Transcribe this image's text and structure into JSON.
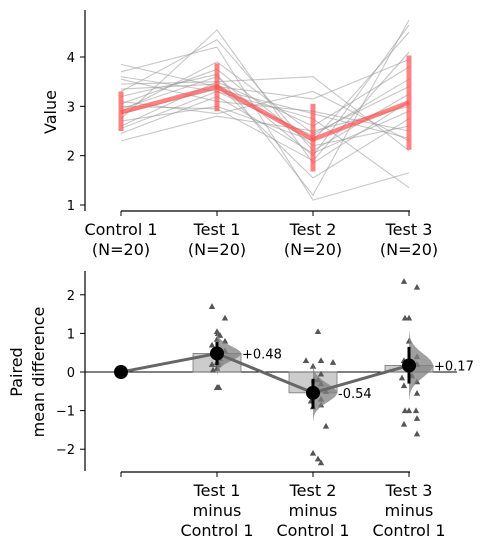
{
  "chart_data": [
    {
      "type": "line",
      "title": "",
      "ylabel": "Value",
      "xlabel": "",
      "ylim": [
        0.9,
        4.95
      ],
      "yticks": [
        1,
        2,
        3,
        4
      ],
      "categories": [
        "Control 1",
        "Test 1",
        "Test 2",
        "Test 3"
      ],
      "category_counts": [
        "(N=20)",
        "(N=20)",
        "(N=20)",
        "(N=20)"
      ],
      "paired_lines": [
        [
          2.45,
          3.2,
          2.05,
          2.9
        ],
        [
          2.6,
          3.5,
          2.6,
          3.8
        ],
        [
          2.7,
          3.0,
          2.3,
          4.5
        ],
        [
          2.75,
          4.55,
          1.85,
          3.1
        ],
        [
          2.85,
          3.35,
          2.85,
          2.35
        ],
        [
          2.9,
          3.9,
          2.45,
          3.4
        ],
        [
          3.0,
          2.95,
          1.9,
          4.1
        ],
        [
          3.05,
          3.75,
          2.2,
          2.6
        ],
        [
          3.2,
          3.65,
          1.2,
          4.75
        ],
        [
          3.3,
          4.35,
          2.1,
          3.25
        ],
        [
          3.45,
          3.5,
          3.6,
          2.1
        ],
        [
          3.55,
          3.1,
          2.9,
          2.5
        ],
        [
          3.7,
          4.2,
          1.1,
          1.65
        ],
        [
          3.85,
          3.4,
          3.15,
          3.95
        ],
        [
          2.3,
          2.8,
          2.5,
          3.0
        ],
        [
          2.55,
          3.3,
          2.75,
          1.35
        ],
        [
          2.95,
          3.6,
          2.0,
          4.65
        ],
        [
          3.1,
          2.85,
          3.3,
          2.3
        ],
        [
          3.35,
          3.45,
          1.55,
          2.75
        ],
        [
          3.6,
          3.3,
          2.4,
          3.55
        ]
      ],
      "summary_means": [
        2.88,
        3.4,
        2.33,
        3.08
      ],
      "summary_std_ranges": [
        [
          2.5,
          3.3
        ],
        [
          2.9,
          3.87
        ],
        [
          1.68,
          3.05
        ],
        [
          2.12,
          4.03
        ]
      ],
      "grid": false
    },
    {
      "type": "scatter",
      "title": "",
      "ylabel": "Paired mean difference",
      "ylabel_lines": [
        "Paired",
        "mean difference"
      ],
      "xlabel": "",
      "ylim": [
        -2.6,
        2.6
      ],
      "yticks": [
        -2,
        -1,
        0,
        1,
        2
      ],
      "categories": [
        "",
        "Test 1 minus Control 1",
        "Test 2 minus Control 1",
        "Test 3 minus Control 1"
      ],
      "category_label_lines": [
        [],
        [
          "Test 1",
          "minus",
          "Control 1"
        ],
        [
          "Test 2",
          "minus",
          "Control 1"
        ],
        [
          "Test 3",
          "minus",
          "Control 1"
        ]
      ],
      "mean_differences": [
        0,
        0.48,
        -0.54,
        0.17
      ],
      "mean_difference_labels": [
        "",
        "+0.48",
        "-0.54",
        "+0.17"
      ],
      "confidence_intervals": [
        null,
        [
          0.18,
          0.78
        ],
        [
          -0.95,
          -0.18
        ],
        [
          -0.3,
          0.65
        ]
      ],
      "paired_differences": [
        [],
        [
          1.7,
          1.4,
          1.05,
          0.95,
          0.85,
          0.8,
          0.7,
          0.55,
          0.45,
          0.35,
          0.25,
          0.25,
          0.2,
          0.2,
          0.1,
          0.05,
          -0.4,
          -0.4,
          -0.4,
          1.0
        ],
        [
          1.05,
          0.3,
          0.3,
          0.25,
          0.15,
          -0.05,
          -0.2,
          -0.2,
          -0.4,
          -0.5,
          -0.6,
          -0.7,
          -0.75,
          -0.85,
          -0.9,
          -1.4,
          -2.1,
          -2.35,
          -2.25,
          -0.3
        ],
        [
          2.35,
          2.2,
          1.4,
          1.4,
          0.8,
          0.4,
          0.3,
          0.2,
          0.05,
          -0.1,
          -0.15,
          -0.25,
          -0.35,
          -0.55,
          -1.0,
          -1.0,
          -1.0,
          -1.2,
          -1.35,
          -1.6
        ]
      ],
      "grid": false
    }
  ]
}
